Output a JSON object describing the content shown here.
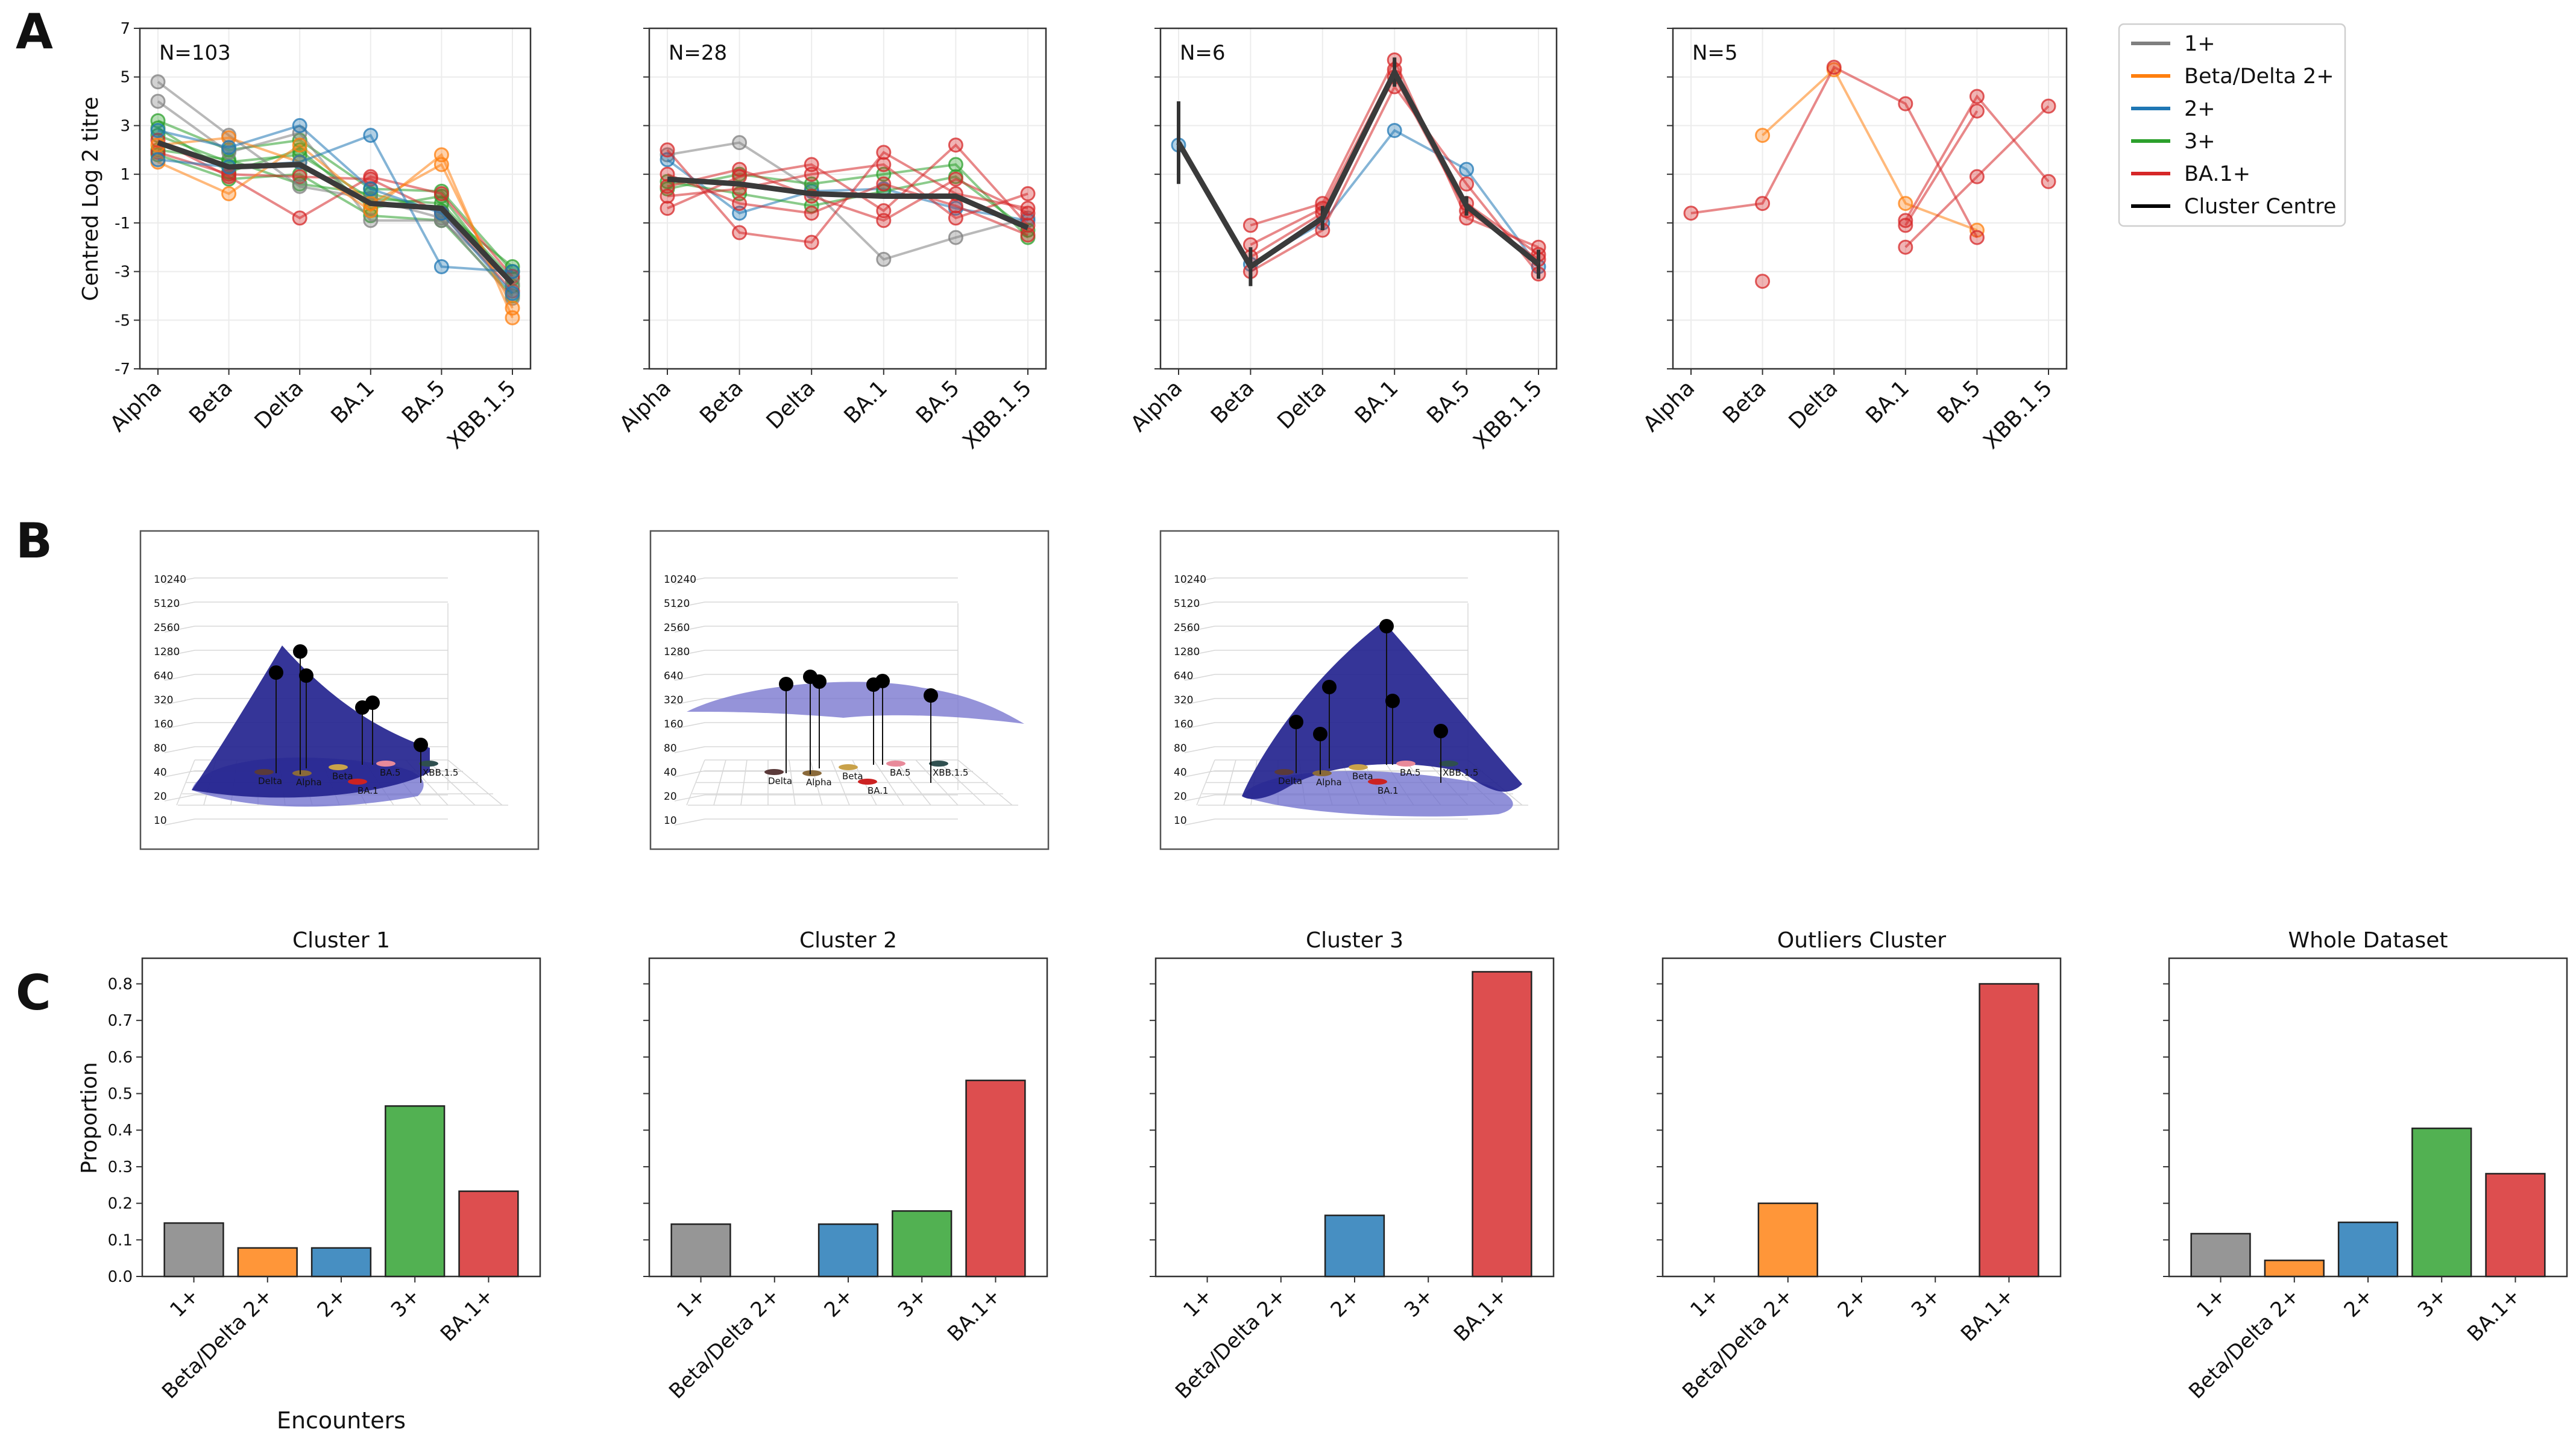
{
  "panel_labels": {
    "a": "A",
    "b": "B",
    "c": "C"
  },
  "variants": [
    "Alpha",
    "Beta",
    "Delta",
    "BA.1",
    "BA.5",
    "XBB.1.5"
  ],
  "panel_a": {
    "ylabel": "Centred Log 2 titre",
    "yticks": [
      -7,
      -5,
      -3,
      -1,
      1,
      3,
      5,
      7
    ],
    "ylim": [
      -7,
      7
    ]
  },
  "panel_b": {
    "zticks": [
      "10240",
      "5120",
      "2560",
      "1280",
      "640",
      "320",
      "160",
      "80",
      "40",
      "20",
      "10"
    ],
    "base_labels": [
      "Delta",
      "Alpha",
      "Beta",
      "BA.5",
      "XBB.1.5",
      "BA.1"
    ]
  },
  "panel_c": {
    "ylabel": "Proportion",
    "xlabel": "Encounters",
    "yticks": [
      "0.0",
      "0.1",
      "0.2",
      "0.3",
      "0.4",
      "0.5",
      "0.6",
      "0.7",
      "0.8"
    ],
    "ylim": [
      0,
      0.87
    ]
  },
  "legend": [
    {
      "label": "1+",
      "color": "#7f7f7f"
    },
    {
      "label": "Beta/Delta 2+",
      "color": "#ff7f0e"
    },
    {
      "label": "2+",
      "color": "#1f77b4"
    },
    {
      "label": "3+",
      "color": "#2ca02c"
    },
    {
      "label": "BA.1+",
      "color": "#d62728"
    },
    {
      "label": "Cluster Centre",
      "color": "#000000"
    }
  ],
  "chart_data": [
    {
      "type": "line",
      "title": "N=103",
      "ylabel": "Centred Log 2 titre",
      "categories": [
        "Alpha",
        "Beta",
        "Delta",
        "BA.1",
        "BA.5",
        "XBB.1.5"
      ],
      "ylim": [
        -7,
        7
      ],
      "cluster_centre": [
        2.3,
        1.3,
        1.4,
        -0.2,
        -0.4,
        -3.5
      ],
      "series": [
        {
          "name": "3+",
          "values": [
            2.6,
            1.5,
            1.8,
            0.0,
            -0.2,
            -3.3
          ]
        },
        {
          "name": "3+",
          "values": [
            3.2,
            2.0,
            2.4,
            0.4,
            0.3,
            -3.0
          ]
        },
        {
          "name": "3+",
          "values": [
            1.8,
            0.8,
            1.0,
            -0.7,
            -0.9,
            -4.0
          ]
        },
        {
          "name": "3+",
          "values": [
            2.9,
            1.1,
            2.0,
            -0.4,
            0.1,
            -3.6
          ]
        },
        {
          "name": "3+",
          "values": [
            2.0,
            1.6,
            0.6,
            0.2,
            -0.5,
            -2.8
          ]
        },
        {
          "name": "BA.1+",
          "values": [
            1.9,
            1.0,
            0.9,
            0.8,
            -0.6,
            -3.8
          ]
        },
        {
          "name": "BA.1+",
          "values": [
            2.4,
            0.9,
            -0.8,
            0.9,
            0.2,
            -3.2
          ]
        },
        {
          "name": "1+",
          "values": [
            4.8,
            2.6,
            0.5,
            0.0,
            -0.8,
            -4.1
          ]
        },
        {
          "name": "1+",
          "values": [
            4.0,
            1.9,
            2.7,
            -0.9,
            -0.9,
            -3.5
          ]
        },
        {
          "name": "Beta/Delta 2+",
          "values": [
            2.2,
            2.5,
            1.5,
            -0.5,
            1.8,
            -4.9
          ]
        },
        {
          "name": "Beta/Delta 2+",
          "values": [
            1.5,
            0.2,
            2.2,
            -0.2,
            1.4,
            -4.5
          ]
        },
        {
          "name": "2+",
          "values": [
            1.6,
            1.3,
            1.5,
            2.6,
            -2.8,
            -3.0
          ]
        },
        {
          "name": "2+",
          "values": [
            2.8,
            2.1,
            3.0,
            0.4,
            -0.6,
            -3.9
          ]
        }
      ]
    },
    {
      "type": "line",
      "title": "N=28",
      "categories": [
        "Alpha",
        "Beta",
        "Delta",
        "BA.1",
        "BA.5",
        "XBB.1.5"
      ],
      "ylim": [
        -7,
        7
      ],
      "cluster_centre": [
        0.8,
        0.6,
        0.2,
        0.1,
        0.1,
        -1.2
      ],
      "series": [
        {
          "name": "1+",
          "values": [
            1.8,
            2.3,
            0.4,
            -2.5,
            -1.6,
            -0.8
          ]
        },
        {
          "name": "2+",
          "values": [
            1.6,
            -0.6,
            0.3,
            0.4,
            -0.4,
            -0.9
          ]
        },
        {
          "name": "3+",
          "values": [
            0.4,
            1.0,
            0.6,
            1.0,
            1.4,
            -1.6
          ]
        },
        {
          "name": "3+",
          "values": [
            0.7,
            0.2,
            -0.3,
            0.3,
            0.9,
            -1.3
          ]
        },
        {
          "name": "BA.1+",
          "values": [
            2.0,
            -1.4,
            -1.8,
            1.9,
            0.2,
            -0.4
          ]
        },
        {
          "name": "BA.1+",
          "values": [
            -0.4,
            0.9,
            1.4,
            -0.5,
            2.2,
            -1.1
          ]
        },
        {
          "name": "BA.1+",
          "values": [
            0.1,
            0.4,
            1.0,
            1.4,
            -0.8,
            0.2
          ]
        },
        {
          "name": "BA.1+",
          "values": [
            1.0,
            -0.2,
            -0.6,
            0.6,
            -0.3,
            -1.5
          ]
        },
        {
          "name": "BA.1+",
          "values": [
            0.5,
            1.2,
            0.1,
            -0.9,
            0.8,
            -0.6
          ]
        }
      ]
    },
    {
      "type": "line",
      "title": "N=6",
      "categories": [
        "Alpha",
        "Beta",
        "Delta",
        "BA.1",
        "BA.5",
        "XBB.1.5"
      ],
      "ylim": [
        -7,
        7
      ],
      "cluster_centre": [
        2.3,
        -2.8,
        -0.8,
        5.2,
        -0.3,
        -2.7
      ],
      "centre_error": [
        1.7,
        0.8,
        0.5,
        0.6,
        0.4,
        0.6
      ],
      "series": [
        {
          "name": "2+",
          "values": [
            2.2,
            -2.7,
            -1.0,
            2.8,
            1.2,
            -2.8
          ]
        },
        {
          "name": "BA.1+",
          "values": [
            null,
            -1.1,
            -0.2,
            5.7,
            -0.8,
            -2.0
          ]
        },
        {
          "name": "BA.1+",
          "values": [
            null,
            -1.9,
            -0.4,
            5.3,
            -0.2,
            -2.3
          ]
        },
        {
          "name": "BA.1+",
          "values": [
            null,
            -3.0,
            -1.3,
            4.6,
            0.6,
            -3.1
          ]
        },
        {
          "name": "BA.1+",
          "values": [
            null,
            -2.4,
            -0.6,
            5.0,
            -0.5,
            -2.5
          ]
        }
      ]
    },
    {
      "type": "line",
      "title": "N=5",
      "categories": [
        "Alpha",
        "Beta",
        "Delta",
        "BA.1",
        "BA.5",
        "XBB.1.5"
      ],
      "ylim": [
        -7,
        7
      ],
      "series": [
        {
          "name": "Beta/Delta 2+",
          "values": [
            null,
            2.6,
            5.3,
            -0.2,
            -1.3,
            null
          ]
        },
        {
          "name": "BA.1+",
          "values": [
            -0.6,
            -0.2,
            5.4,
            3.9,
            -1.6,
            null
          ]
        },
        {
          "name": "BA.1+",
          "values": [
            null,
            -3.4,
            null,
            null,
            null,
            null
          ]
        },
        {
          "name": "BA.1+",
          "values": [
            null,
            null,
            null,
            -0.9,
            4.2,
            0.7
          ]
        },
        {
          "name": "BA.1+",
          "values": [
            null,
            null,
            null,
            -2.0,
            0.9,
            3.8
          ]
        },
        {
          "name": "BA.1+",
          "values": [
            null,
            null,
            null,
            -1.1,
            3.6,
            null
          ]
        }
      ]
    },
    {
      "type": "bar",
      "title": "Cluster 1",
      "categories": [
        "1+",
        "Beta/Delta 2+",
        "2+",
        "3+",
        "BA.1+"
      ],
      "values": [
        0.146,
        0.078,
        0.078,
        0.466,
        0.233
      ],
      "ylabel": "Proportion",
      "xlabel": "Encounters",
      "ylim": [
        0,
        0.87
      ]
    },
    {
      "type": "bar",
      "title": "Cluster 2",
      "categories": [
        "1+",
        "Beta/Delta 2+",
        "2+",
        "3+",
        "BA.1+"
      ],
      "values": [
        0.143,
        0.0,
        0.143,
        0.179,
        0.536
      ],
      "ylim": [
        0,
        0.87
      ]
    },
    {
      "type": "bar",
      "title": "Cluster 3",
      "categories": [
        "1+",
        "Beta/Delta 2+",
        "2+",
        "3+",
        "BA.1+"
      ],
      "values": [
        0.0,
        0.0,
        0.167,
        0.0,
        0.833
      ],
      "ylim": [
        0,
        0.87
      ]
    },
    {
      "type": "bar",
      "title": "Outliers Cluster",
      "categories": [
        "1+",
        "Beta/Delta 2+",
        "2+",
        "3+",
        "BA.1+"
      ],
      "values": [
        0.0,
        0.2,
        0.0,
        0.0,
        0.8
      ],
      "ylim": [
        0,
        0.87
      ]
    },
    {
      "type": "bar",
      "title": "Whole Dataset",
      "categories": [
        "1+",
        "Beta/Delta 2+",
        "2+",
        "3+",
        "BA.1+"
      ],
      "values": [
        0.117,
        0.044,
        0.148,
        0.405,
        0.281
      ],
      "ylim": [
        0,
        0.87
      ]
    }
  ]
}
